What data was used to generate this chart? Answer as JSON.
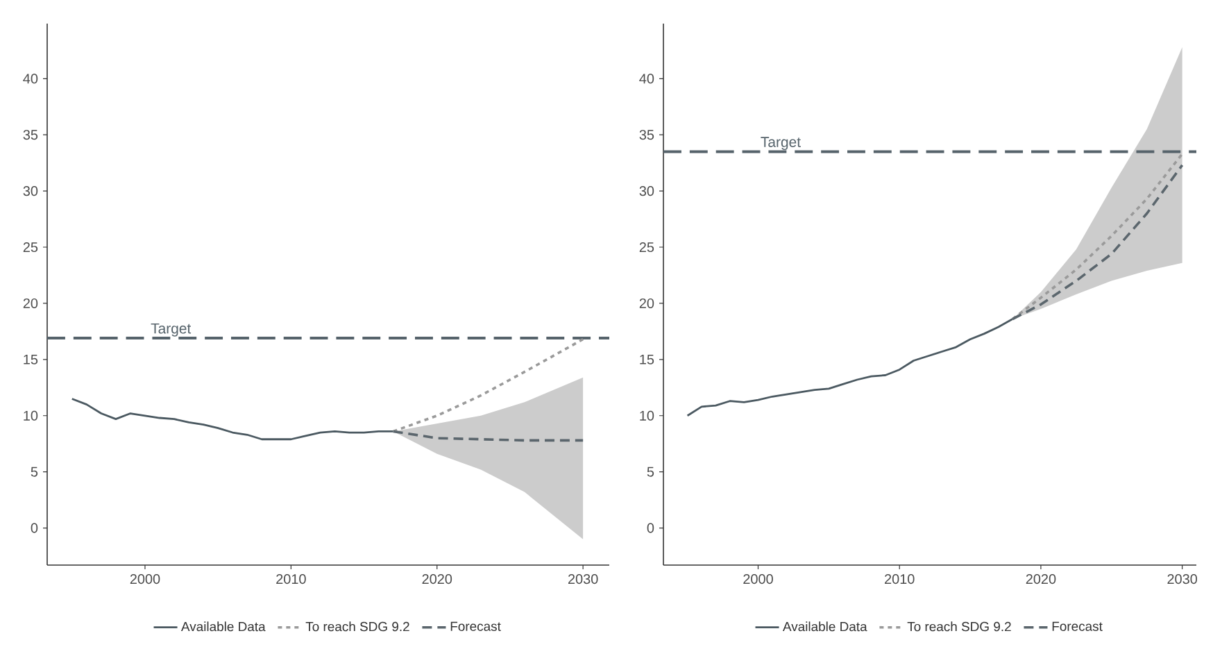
{
  "chart_data": [
    {
      "type": "line",
      "xlim": [
        1993.3,
        2031.8
      ],
      "ylim": [
        -3.3,
        44.9
      ],
      "xticks": [
        2000,
        2010,
        2020,
        2030
      ],
      "yticks": [
        0,
        5,
        10,
        15,
        20,
        25,
        30,
        35,
        40
      ],
      "grid": false,
      "legend": "bottom",
      "ref_lines": [
        {
          "axis": "y",
          "value": 16.9,
          "label": "Target",
          "color": "#56636b",
          "line_style": "dashed"
        }
      ],
      "series": [
        {
          "name": "Available Data",
          "color": "#4b5961",
          "line_style": "solid",
          "x": [
            1995,
            1996,
            1997,
            1998,
            1999,
            2000,
            2001,
            2002,
            2003,
            2004,
            2005,
            2006,
            2007,
            2008,
            2009,
            2010,
            2011,
            2012,
            2013,
            2014,
            2015,
            2016,
            2017
          ],
          "values": [
            11.5,
            11.0,
            10.2,
            9.7,
            10.2,
            10.0,
            9.8,
            9.7,
            9.4,
            9.2,
            8.9,
            8.5,
            8.3,
            7.9,
            7.9,
            7.9,
            8.2,
            8.5,
            8.6,
            8.5,
            8.5,
            8.6,
            8.6
          ]
        },
        {
          "name": "To reach SDG 9.2",
          "color": "#9a9a9a",
          "line_style": "dotted",
          "x": [
            2017,
            2020,
            2023,
            2026,
            2030
          ],
          "values": [
            8.6,
            10.0,
            11.8,
            13.9,
            16.8
          ]
        },
        {
          "name": "Forecast",
          "color": "#5b666d",
          "line_style": "dashed",
          "x": [
            2017,
            2020,
            2023,
            2026,
            2030
          ],
          "values": [
            8.6,
            8.0,
            7.9,
            7.8,
            7.8
          ],
          "lower": [
            8.6,
            6.6,
            5.2,
            3.2,
            -1.0
          ],
          "upper": [
            8.6,
            9.3,
            10.0,
            11.2,
            13.4
          ]
        }
      ]
    },
    {
      "type": "line",
      "xlim": [
        1993.3,
        2031.0
      ],
      "ylim": [
        -3.3,
        44.9
      ],
      "xticks": [
        2000,
        2010,
        2020,
        2030
      ],
      "yticks": [
        0,
        5,
        10,
        15,
        20,
        25,
        30,
        35,
        40
      ],
      "grid": false,
      "legend": "bottom",
      "ref_lines": [
        {
          "axis": "y",
          "value": 33.5,
          "label": "Target",
          "color": "#56636b",
          "line_style": "dashed"
        }
      ],
      "series": [
        {
          "name": "Available Data",
          "color": "#4b5961",
          "line_style": "solid",
          "x": [
            1995,
            1996,
            1997,
            1998,
            1999,
            2000,
            2001,
            2002,
            2003,
            2004,
            2005,
            2006,
            2007,
            2008,
            2009,
            2010,
            2011,
            2012,
            2013,
            2014,
            2015,
            2016,
            2017,
            2018
          ],
          "values": [
            10.0,
            10.8,
            10.9,
            11.3,
            11.2,
            11.4,
            11.7,
            11.9,
            12.1,
            12.3,
            12.4,
            12.8,
            13.2,
            13.5,
            13.6,
            14.1,
            14.9,
            15.3,
            15.7,
            16.1,
            16.8,
            17.3,
            17.9,
            18.6
          ]
        },
        {
          "name": "To reach SDG 9.2",
          "color": "#9a9a9a",
          "line_style": "dotted",
          "x": [
            2018,
            2020,
            2022.5,
            2025,
            2027.5,
            2030
          ],
          "values": [
            18.6,
            20.5,
            23.0,
            26.0,
            29.3,
            33.3
          ]
        },
        {
          "name": "Forecast",
          "color": "#5b666d",
          "line_style": "dashed",
          "x": [
            2018,
            2020,
            2022.5,
            2025,
            2027.5,
            2030
          ],
          "values": [
            18.6,
            19.9,
            22.0,
            24.4,
            28.0,
            32.3
          ],
          "lower": [
            18.6,
            19.5,
            20.8,
            22.0,
            22.9,
            23.6
          ],
          "upper": [
            18.6,
            21.0,
            24.8,
            30.3,
            35.5,
            42.8
          ]
        }
      ]
    }
  ]
}
